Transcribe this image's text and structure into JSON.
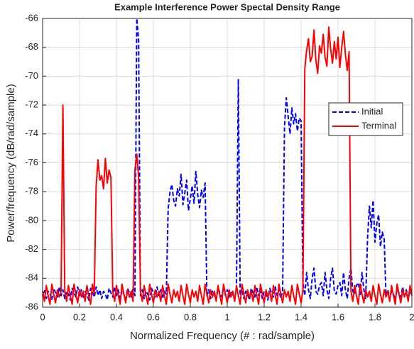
{
  "chart_data": {
    "type": "line",
    "title": "Example Interference Power Spectal Density Range",
    "xlabel": "Normalized Frequency (#  :  rad/sample)",
    "ylabel": "Power/frequency (dB/rad/sample)",
    "xlim": [
      0,
      2
    ],
    "ylim": [
      -86,
      -66
    ],
    "xticks": [
      0,
      0.2,
      0.4,
      0.6,
      0.8,
      1,
      1.2,
      1.4,
      1.6,
      1.8,
      2
    ],
    "yticks": [
      -86,
      -84,
      -82,
      -80,
      -78,
      -76,
      -74,
      -72,
      -70,
      -68,
      -66
    ],
    "grid": true,
    "legend": "upper right",
    "x": [
      0,
      0.01,
      0.02,
      0.03,
      0.04,
      0.05,
      0.06,
      0.07,
      0.08,
      0.09,
      0.1,
      0.11,
      0.12,
      0.13,
      0.14,
      0.15,
      0.16,
      0.17,
      0.18,
      0.19,
      0.2,
      0.21,
      0.22,
      0.23,
      0.24,
      0.25,
      0.26,
      0.27,
      0.28,
      0.29,
      0.3,
      0.31,
      0.32,
      0.33,
      0.34,
      0.35,
      0.36,
      0.37,
      0.38,
      0.39,
      0.4,
      0.41,
      0.42,
      0.43,
      0.44,
      0.45,
      0.46,
      0.47,
      0.48,
      0.49,
      0.5,
      0.51,
      0.52,
      0.53,
      0.54,
      0.55,
      0.56,
      0.57,
      0.58,
      0.59,
      0.6,
      0.61,
      0.62,
      0.63,
      0.64,
      0.65,
      0.66,
      0.67,
      0.68,
      0.69,
      0.7,
      0.71,
      0.72,
      0.73,
      0.74,
      0.75,
      0.76,
      0.77,
      0.78,
      0.79,
      0.8,
      0.81,
      0.82,
      0.83,
      0.84,
      0.85,
      0.86,
      0.87,
      0.88,
      0.89,
      0.9,
      0.91,
      0.92,
      0.93,
      0.94,
      0.95,
      0.96,
      0.97,
      0.98,
      0.99,
      1,
      1.01,
      1.02,
      1.03,
      1.04,
      1.05,
      1.06,
      1.07,
      1.08,
      1.09,
      1.1,
      1.11,
      1.12,
      1.13,
      1.14,
      1.15,
      1.16,
      1.17,
      1.18,
      1.19,
      1.2,
      1.21,
      1.22,
      1.23,
      1.24,
      1.25,
      1.26,
      1.27,
      1.28,
      1.29,
      1.3,
      1.31,
      1.32,
      1.33,
      1.34,
      1.35,
      1.36,
      1.37,
      1.38,
      1.39,
      1.4,
      1.41,
      1.42,
      1.43,
      1.44,
      1.45,
      1.46,
      1.47,
      1.48,
      1.49,
      1.5,
      1.51,
      1.52,
      1.53,
      1.54,
      1.55,
      1.56,
      1.57,
      1.58,
      1.59,
      1.6,
      1.61,
      1.62,
      1.63,
      1.64,
      1.65,
      1.66,
      1.67,
      1.68,
      1.69,
      1.7,
      1.71,
      1.72,
      1.73,
      1.74,
      1.75,
      1.76,
      1.77,
      1.78,
      1.79,
      1.8,
      1.81,
      1.82,
      1.83,
      1.84,
      1.85,
      1.86,
      1.87,
      1.88,
      1.89,
      1.9,
      1.91,
      1.92,
      1.93,
      1.94,
      1.95,
      1.96,
      1.97,
      1.98,
      1.99,
      2
    ],
    "series": [
      {
        "name": "Initial",
        "color": "#0000ff",
        "dash": true,
        "values": [
          -85.2,
          -84.8,
          -85.4,
          -84.9,
          -85.1,
          -85.5,
          -84.7,
          -85.0,
          -85.3,
          -84.6,
          -85.2,
          -84.8,
          -85.4,
          -84.9,
          -85.1,
          -85.5,
          -84.7,
          -85.0,
          -85.3,
          -84.6,
          -85.2,
          -84.8,
          -85.4,
          -84.9,
          -85.1,
          -85.5,
          -84.7,
          -85.0,
          -85.3,
          -84.6,
          -85.2,
          -84.8,
          -85.4,
          -84.9,
          -85.1,
          -85.5,
          -84.7,
          -85.0,
          -85.3,
          -84.6,
          -85.2,
          -84.8,
          -85.4,
          -84.9,
          -85.1,
          -85.5,
          -84.7,
          -85.0,
          -85.3,
          -84.6,
          -85.2,
          -66,
          -67.5,
          -85.2,
          -84.8,
          -85.4,
          -84.9,
          -85.1,
          -85.5,
          -84.7,
          -85.0,
          -85.3,
          -84.6,
          -85.2,
          -84.8,
          -85.4,
          -84.9,
          -85.1,
          -79.2,
          -78.0,
          -77.5,
          -78.6,
          -79.0,
          -77.8,
          -78.3,
          -76.8,
          -78.9,
          -78.1,
          -77.2,
          -79.3,
          -78.5,
          -77.6,
          -78.8,
          -76.6,
          -78.2,
          -79.1,
          -77.9,
          -78.4,
          -77.4,
          -85.2,
          -84.8,
          -85.4,
          -84.9,
          -85.1,
          -85.5,
          -84.7,
          -85.0,
          -85.3,
          -84.6,
          -85.2,
          -84.8,
          -85.4,
          -84.9,
          -85.1,
          -85.5,
          -84.7,
          -70.2,
          -85.2,
          -84.8,
          -85.4,
          -84.9,
          -85.1,
          -85.5,
          -84.7,
          -85.0,
          -85.3,
          -84.6,
          -85.2,
          -84.8,
          -85.4,
          -84.9,
          -85.1,
          -85.5,
          -84.7,
          -85.0,
          -85.3,
          -84.6,
          -85.2,
          -84.8,
          -85.4,
          -84.9,
          -73.5,
          -71.5,
          -72.8,
          -74.0,
          -72.2,
          -73.3,
          -72.6,
          -73.8,
          -72.9,
          -73.1,
          -84.3,
          -85.2,
          -83.6,
          -84.8,
          -85.4,
          -84.0,
          -83.3,
          -84.9,
          -85.1,
          -84.5,
          -84.3,
          -85.2,
          -83.6,
          -84.8,
          -85.4,
          -84.0,
          -83.3,
          -84.9,
          -85.1,
          -84.5,
          -84.3,
          -85.2,
          -83.6,
          -84.8,
          -85.4,
          -84.0,
          -83.3,
          -84.9,
          -85.1,
          -84.5,
          -84.3,
          -85.2,
          -83.6,
          -84.8,
          -85.4,
          -81.2,
          -79.0,
          -80.5,
          -78.6,
          -81.5,
          -80.2,
          -79.6,
          -81.8,
          -80.8,
          -81.3,
          -85.2,
          -84.8,
          -85.4,
          -84.9,
          -85.1,
          -85.5,
          -84.7,
          -85.0,
          -85.3,
          -84.6,
          -85.2,
          -84.8,
          -85.4,
          -84.9,
          -85.1
        ]
      },
      {
        "name": "Terminal",
        "color": "#ff0000",
        "dash": false,
        "values": [
          -84.9,
          -85.6,
          -84.5,
          -85.2,
          -85.8,
          -84.4,
          -85.1,
          -85.7,
          -84.8,
          -85.3,
          -84.9,
          -72,
          -84.9,
          -85.6,
          -84.5,
          -85.2,
          -85.8,
          -84.4,
          -85.1,
          -85.7,
          -84.8,
          -85.3,
          -84.9,
          -85.6,
          -84.5,
          -85.2,
          -85.8,
          -84.4,
          -85.1,
          -77.6,
          -75.8,
          -77.2,
          -76.9,
          -77.8,
          -75.7,
          -77.4,
          -76.5,
          -77.0,
          -84.9,
          -85.6,
          -84.5,
          -85.2,
          -85.8,
          -84.4,
          -85.1,
          -85.7,
          -84.8,
          -85.3,
          -84.9,
          -85.6,
          -76.5,
          -75.4,
          -77.0,
          -84.9,
          -85.6,
          -84.5,
          -85.2,
          -85.8,
          -84.4,
          -85.1,
          -85.7,
          -84.8,
          -85.3,
          -84.9,
          -85.6,
          -84.5,
          -85.2,
          -85.8,
          -84.4,
          -85.1,
          -85.7,
          -84.8,
          -85.3,
          -84.9,
          -85.6,
          -84.5,
          -85.2,
          -85.8,
          -84.4,
          -85.1,
          -85.7,
          -84.8,
          -85.3,
          -84.9,
          -85.6,
          -84.5,
          -85.2,
          -85.8,
          -84.4,
          -85.1,
          -85.7,
          -84.8,
          -85.3,
          -84.9,
          -85.6,
          -84.5,
          -85.2,
          -85.8,
          -84.4,
          -85.1,
          -85.7,
          -84.8,
          -85.3,
          -84.9,
          -85.6,
          -84.5,
          -85.2,
          -85.8,
          -84.4,
          -85.1,
          -85.7,
          -84.8,
          -85.3,
          -84.9,
          -85.6,
          -84.5,
          -85.2,
          -85.8,
          -84.4,
          -85.1,
          -85.7,
          -84.8,
          -85.3,
          -84.9,
          -85.6,
          -84.5,
          -85.2,
          -85.8,
          -84.4,
          -85.1,
          -85.7,
          -84.8,
          -85.3,
          -84.9,
          -85.6,
          -84.5,
          -85.2,
          -85.8,
          -84.4,
          -85.1,
          -85.7,
          -84.8,
          -69.5,
          -68.2,
          -67.4,
          -69.0,
          -68.6,
          -66.8,
          -68.9,
          -69.8,
          -67.9,
          -68.4,
          -67.1,
          -68.7,
          -69.3,
          -66.6,
          -68.1,
          -69.1,
          -67.6,
          -68.8,
          -67.3,
          -69.4,
          -68.0,
          -66.9,
          -68.5,
          -69.6,
          -68.3,
          -84.9,
          -85.6,
          -84.5,
          -85.2,
          -85.8,
          -84.4,
          -85.1,
          -85.7,
          -84.8,
          -85.3,
          -84.9,
          -85.6,
          -84.5,
          -85.2,
          -85.8,
          -84.4,
          -85.1,
          -85.7,
          -84.8,
          -85.3,
          -84.9,
          -85.6,
          -84.5,
          -85.2,
          -85.8,
          -84.4,
          -85.1,
          -85.7,
          -84.8,
          -85.3,
          -84.9,
          -85.6,
          -84.5,
          -85.2
        ]
      }
    ]
  }
}
